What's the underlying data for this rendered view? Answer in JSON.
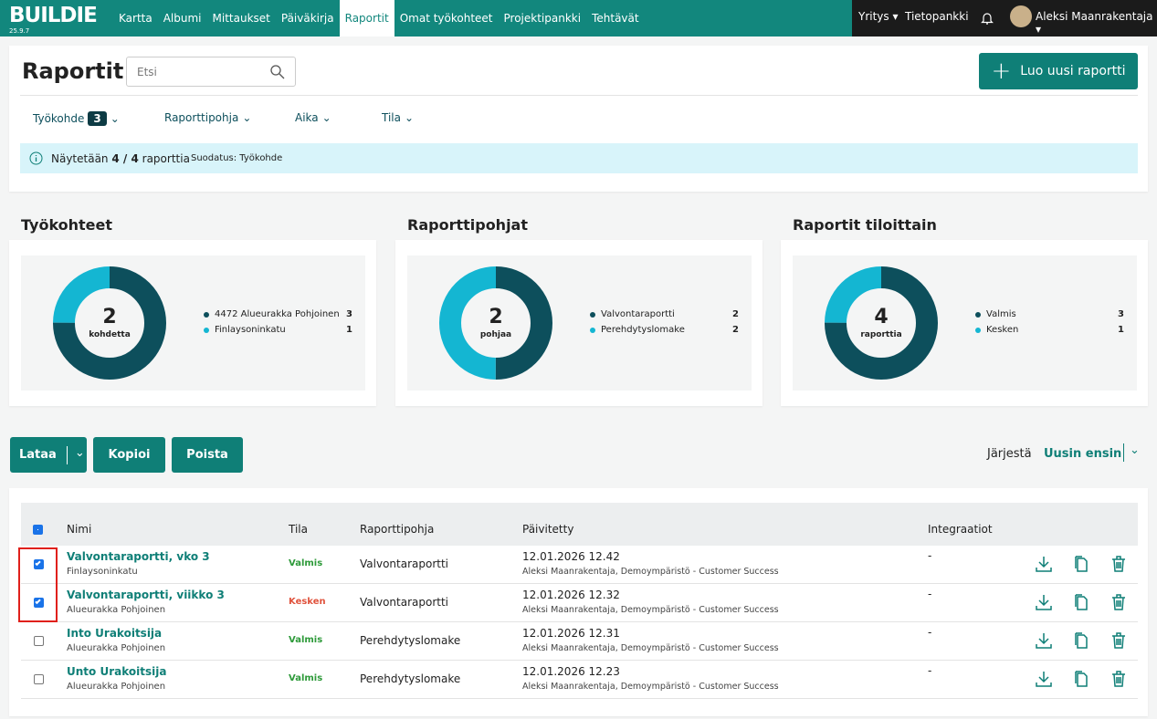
{
  "nav": {
    "logo": "BUILDIE",
    "version": "25.9.7",
    "items": [
      "Kartta",
      "Albumi",
      "Mittaukset",
      "Päiväkirja",
      "Raportit",
      "Omat työkohteet",
      "Projektipankki",
      "Tehtävät"
    ],
    "active": 4,
    "company": "Yritys",
    "knowledge": "Tietopankki",
    "user": "Aleksi Maanrakentaja"
  },
  "header": {
    "title": "Raportit",
    "search_placeholder": "Etsi",
    "create_button": "Luo uusi raportti"
  },
  "filters": [
    {
      "label": "Työkohde",
      "count": 3
    },
    {
      "label": "Raporttipohja"
    },
    {
      "label": "Aika"
    },
    {
      "label": "Tila"
    }
  ],
  "info": {
    "prefix": "Näytetään",
    "count": "4 / 4",
    "suffix": "raporttia",
    "filter": "Suodatus: Työkohde"
  },
  "panels": [
    {
      "title": "Työkohteet",
      "total": 2,
      "total_label": "kohdetta",
      "items": [
        {
          "label": "4472 Alueurakka Pohjoinen",
          "value": 3,
          "color": "#0d4f5c"
        },
        {
          "label": "Finlaysoninkatu",
          "value": 1,
          "color": "#14b6d2"
        }
      ]
    },
    {
      "title": "Raporttipohjat",
      "total": 2,
      "total_label": "pohjaa",
      "items": [
        {
          "label": "Valvontaraportti",
          "value": 2,
          "color": "#0d4f5c"
        },
        {
          "label": "Perehdytyslomake",
          "value": 2,
          "color": "#14b6d2"
        }
      ]
    },
    {
      "title": "Raportit tiloittain",
      "total": 4,
      "total_label": "raporttia",
      "items": [
        {
          "label": "Valmis",
          "value": 3,
          "color": "#0d4f5c"
        },
        {
          "label": "Kesken",
          "value": 1,
          "color": "#14b6d2"
        }
      ]
    }
  ],
  "actions": {
    "download": "Lataa",
    "copy": "Kopioi",
    "delete": "Poista"
  },
  "sort": {
    "label": "Järjestä",
    "value": "Uusin ensin"
  },
  "table": {
    "columns": [
      "Nimi",
      "Tila",
      "Raporttipohja",
      "Päivitetty",
      "Integraatiot"
    ],
    "rows": [
      {
        "name": "Valvontaraportti, vko 3",
        "site": "Finlaysoninkatu",
        "status": "Valmis",
        "status_color": "#2e9a3a",
        "template": "Valvontaraportti",
        "updated": "12.01.2026 12.42",
        "updated_by": "Aleksi Maanrakentaja, Demoympäristö - Customer Success",
        "integration": "-",
        "checked": true
      },
      {
        "name": "Valvontaraportti, viikko 3",
        "site": "Alueurakka Pohjoinen",
        "status": "Kesken",
        "status_color": "#e0533d",
        "template": "Valvontaraportti",
        "updated": "12.01.2026 12.32",
        "updated_by": "Aleksi Maanrakentaja, Demoympäristö - Customer Success",
        "integration": "-",
        "checked": true
      },
      {
        "name": "Into Urakoitsija",
        "site": "Alueurakka Pohjoinen",
        "status": "Valmis",
        "status_color": "#2e9a3a",
        "template": "Perehdytyslomake",
        "updated": "12.01.2026 12.31",
        "updated_by": "Aleksi Maanrakentaja, Demoympäristö - Customer Success",
        "integration": "-",
        "checked": false
      },
      {
        "name": "Unto Urakoitsija",
        "site": "Alueurakka Pohjoinen",
        "status": "Valmis",
        "status_color": "#2e9a3a",
        "template": "Perehdytyslomake",
        "updated": "12.01.2026 12.23",
        "updated_by": "Aleksi Maanrakentaja, Demoympäristö - Customer Success",
        "integration": "-",
        "checked": false
      }
    ]
  }
}
